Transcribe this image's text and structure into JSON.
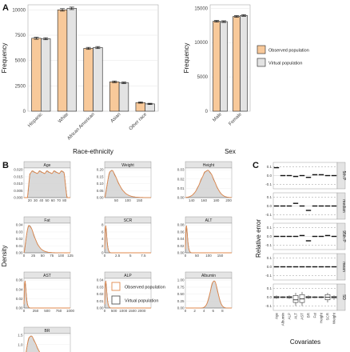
{
  "colors": {
    "observed": "#F8C99A",
    "virtual": "#E3E3E3",
    "observed_line": "#E0894E",
    "virtual_line": "#555555"
  },
  "chart_data": [
    {
      "id": "A-race",
      "panel_letter": "A",
      "type": "bar",
      "xlabel": "Race-ethnicity",
      "ylabel": "Frequency",
      "ylim": [
        0,
        10500
      ],
      "yticks": [
        0,
        2500,
        5000,
        7500,
        10000
      ],
      "categories": [
        "Hispanic",
        "White",
        "African American",
        "Asian",
        "Other race"
      ],
      "series": [
        {
          "name": "Observed population",
          "values": [
            7200,
            10000,
            6200,
            2900,
            850
          ]
        },
        {
          "name": "Virtual population",
          "values": [
            7150,
            10150,
            6280,
            2800,
            720
          ]
        }
      ],
      "error": [
        100,
        120,
        100,
        80,
        60
      ]
    },
    {
      "id": "A-sex",
      "type": "bar",
      "xlabel": "Sex",
      "ylabel": "Frequency",
      "ylim": [
        0,
        15500
      ],
      "yticks": [
        0,
        5000,
        10000,
        15000
      ],
      "categories": [
        "Male",
        "Female"
      ],
      "series": [
        {
          "name": "Observed population",
          "values": [
            13100,
            13800
          ]
        },
        {
          "name": "Virtual population",
          "values": [
            13050,
            13950
          ]
        }
      ],
      "error": [
        120,
        120
      ],
      "legend": [
        "Observed population",
        "Virtual population"
      ]
    },
    {
      "id": "B-density",
      "panel_letter": "B",
      "type": "area",
      "ylabel": "Density",
      "legend": [
        "Observed population",
        "Virtual population"
      ],
      "panels": [
        {
          "name": "Age",
          "xlim": [
            10,
            90
          ],
          "ymax": 0.021,
          "xticks": [
            20,
            30,
            40,
            50,
            60,
            70,
            80
          ],
          "yticks": [
            "0.000",
            "0.005",
            "0.010",
            "0.015",
            "0.020"
          ],
          "shape": "plateau"
        },
        {
          "name": "Weight",
          "xlim": [
            0,
            200
          ],
          "ymax": 0.021,
          "xticks": [
            50,
            100,
            150
          ],
          "yticks": [
            "0.00",
            "0.05",
            "0.10",
            "0.15",
            "0.20"
          ],
          "shape": "skew-low"
        },
        {
          "name": "Height",
          "xlim": [
            130,
            205
          ],
          "ymax": 0.031,
          "xticks": [
            140,
            160,
            180,
            200
          ],
          "yticks": [
            "0.00",
            "0.01",
            "0.02",
            "0.03"
          ],
          "shape": "bell"
        },
        {
          "name": "Fat",
          "xlim": [
            0,
            125
          ],
          "ymax": 0.045,
          "xticks": [
            0,
            25,
            50,
            75,
            100,
            125
          ],
          "yticks": [
            "0.00",
            "0.01",
            "0.02",
            "0.03",
            "0.04"
          ],
          "shape": "skew-mid"
        },
        {
          "name": "SCR",
          "xlim": [
            0,
            9
          ],
          "ymax": 10,
          "xticks": [
            0,
            2.5,
            5,
            7.5
          ],
          "yticks": [
            "0",
            "2",
            "4",
            "6",
            "8"
          ],
          "shape": "spike"
        },
        {
          "name": "ALT",
          "xlim": [
            0,
            200
          ],
          "ymax": 0.09,
          "xticks": [
            0,
            50,
            100,
            150
          ],
          "yticks": [
            "0.00",
            "0.02",
            "0.04",
            "0.06",
            "0.08"
          ],
          "shape": "spike"
        },
        {
          "name": "AST",
          "xlim": [
            0,
            1000
          ],
          "ymax": 0.065,
          "xticks": [
            0,
            250,
            500,
            750,
            1000
          ],
          "yticks": [
            "0.00",
            "0.02",
            "0.04",
            "0.06"
          ],
          "shape": "spike"
        },
        {
          "name": "ALP",
          "xlim": [
            0,
            2500
          ],
          "ymax": 0.045,
          "xticks": [
            0,
            500,
            1000,
            1500,
            2000
          ],
          "yticks": [
            "0.00",
            "0.01",
            "0.02",
            "0.03",
            "0.04"
          ],
          "shape": "spike"
        },
        {
          "name": "Albumin",
          "xlim": [
            0,
            10
          ],
          "ymax": 1.05,
          "xticks": [
            0,
            2,
            4,
            6,
            8
          ],
          "yticks": [
            "0.00",
            "0.25",
            "0.50",
            "0.75",
            "1.00"
          ],
          "shape": "bell-right"
        },
        {
          "name": "BR",
          "xlim": [
            0,
            7.5
          ],
          "ymax": 1.6,
          "xticks": [
            0,
            2,
            4,
            6
          ],
          "yticks": [
            "0.0",
            "0.5",
            "1.0",
            "1.5"
          ],
          "shape": "skew-low"
        }
      ]
    },
    {
      "id": "C-relerror",
      "panel_letter": "C",
      "type": "scatter",
      "xlabel": "Covariates",
      "ylabel": "Relative error",
      "ylim": [
        -0.15,
        0.15
      ],
      "yticks": [
        "-0.1",
        "0.0",
        "0.1"
      ],
      "covariates": [
        "Age",
        "Albumin",
        "ALP",
        "ALT",
        "AST",
        "BR",
        "Fat",
        "Height",
        "SCR",
        "Weight"
      ],
      "rows": [
        {
          "name": "5th P",
          "values": [
            0.09,
            0.0,
            0.0,
            -0.01,
            0.0,
            -0.02,
            0.01,
            0.01,
            0.0,
            0.0
          ]
        },
        {
          "name": "median",
          "values": [
            0.0,
            0.0,
            0.0,
            0.03,
            0.0,
            -0.05,
            0.0,
            0.0,
            0.0,
            0.0
          ]
        },
        {
          "name": "95th P",
          "values": [
            0.0,
            0.0,
            0.0,
            0.0,
            0.01,
            -0.05,
            0.0,
            0.0,
            0.01,
            0.0
          ]
        },
        {
          "name": "mean",
          "values": [
            0.0,
            0.0,
            0.0,
            0.0,
            0.0,
            0.0,
            0.0,
            0.0,
            0.0,
            0.0
          ]
        },
        {
          "name": "SD",
          "type": "box",
          "values": [
            {
              "med": 0.0,
              "q1": -0.01,
              "q3": 0.01,
              "lo": -0.02,
              "hi": 0.02
            },
            {
              "med": 0.0,
              "q1": -0.005,
              "q3": 0.005,
              "lo": -0.01,
              "hi": 0.01
            },
            {
              "med": 0.0,
              "q1": -0.01,
              "q3": 0.01,
              "lo": -0.02,
              "hi": 0.02
            },
            {
              "med": -0.03,
              "q1": -0.06,
              "q3": 0.02,
              "lo": -0.1,
              "hi": 0.05
            },
            {
              "med": -0.02,
              "q1": -0.06,
              "q3": 0.03,
              "lo": -0.1,
              "hi": 0.06
            },
            {
              "med": 0.0,
              "q1": -0.01,
              "q3": 0.01,
              "lo": -0.02,
              "hi": 0.02
            },
            {
              "med": 0.0,
              "q1": -0.005,
              "q3": 0.005,
              "lo": -0.01,
              "hi": 0.01
            },
            {
              "med": 0.0,
              "q1": -0.005,
              "q3": 0.005,
              "lo": -0.01,
              "hi": 0.01
            },
            {
              "med": 0.0,
              "q1": -0.03,
              "q3": 0.03,
              "lo": -0.06,
              "hi": 0.05
            },
            {
              "med": 0.0,
              "q1": -0.01,
              "q3": 0.01,
              "lo": -0.03,
              "hi": 0.02
            }
          ]
        }
      ]
    }
  ]
}
